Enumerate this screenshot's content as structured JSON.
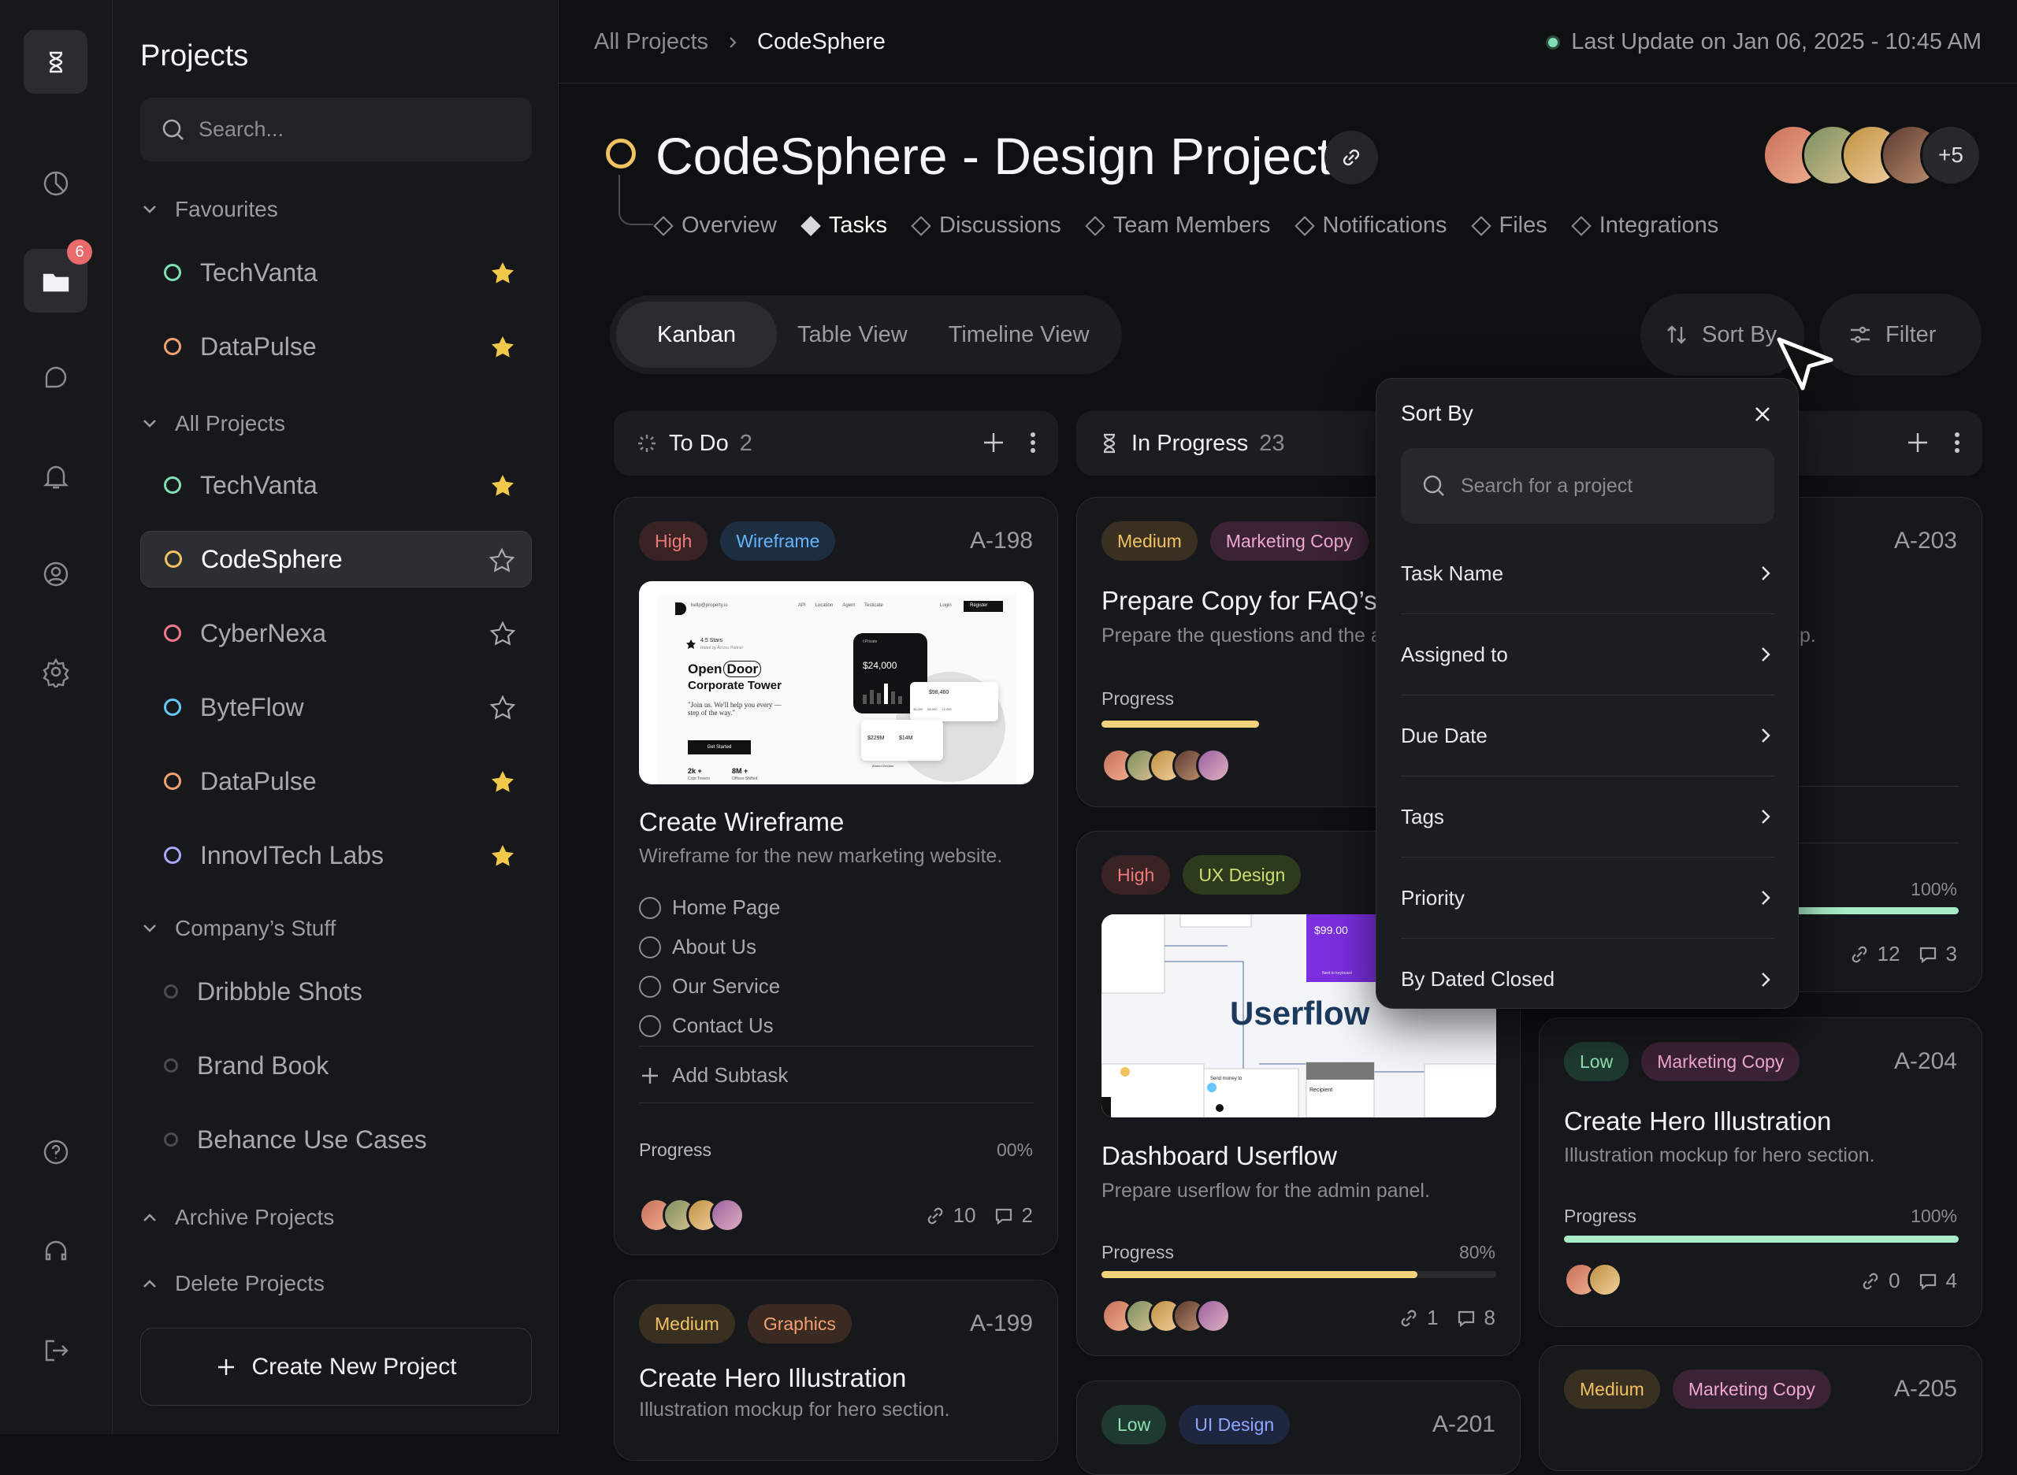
{
  "rail": {
    "badge": "6"
  },
  "sidebar": {
    "title": "Projects",
    "search_placeholder": "Search...",
    "favourites_label": "Favourites",
    "favourites": [
      {
        "name": "TechVanta",
        "color": "#7fe0b4",
        "starred": true
      },
      {
        "name": "DataPulse",
        "color": "#f2a070",
        "starred": true
      }
    ],
    "all_label": "All Projects",
    "all": [
      {
        "name": "TechVanta",
        "color": "#7fe0b4",
        "starred": true
      },
      {
        "name": "CodeSphere",
        "color": "#f2c161",
        "starred": false
      },
      {
        "name": "CyberNexa",
        "color": "#f07a8a",
        "starred": false
      },
      {
        "name": "ByteFlow",
        "color": "#66c8ff",
        "starred": false
      },
      {
        "name": "DataPulse",
        "color": "#f2a070",
        "starred": true
      },
      {
        "name": "InnovITech Labs",
        "color": "#a8a8ff",
        "starred": true
      }
    ],
    "company_label": "Company’s Stuff",
    "company": [
      "Dribbble Shots",
      "Brand Book",
      "Behance Use Cases"
    ],
    "archive_label": "Archive Projects",
    "delete_label": "Delete Projects",
    "create_label": "Create New Project"
  },
  "header": {
    "crumb_root": "All Projects",
    "crumb_current": "CodeSphere",
    "last_update": "Last Update on Jan 06, 2025 - 10:45 AM",
    "title": "CodeSphere - Design Project",
    "tabs": [
      "Overview",
      "Tasks",
      "Discussions",
      "Team Members",
      "Notifications",
      "Files",
      "Integrations"
    ],
    "more_members": "+5"
  },
  "views": [
    "Kanban",
    "Table View",
    "Timeline View"
  ],
  "sort_label": "Sort By",
  "filter_label": "Filter",
  "columns": {
    "todo": {
      "title": "To Do",
      "count": "2"
    },
    "progress": {
      "title": "In Progress",
      "count": "23"
    }
  },
  "cards": {
    "c198": {
      "tags": [
        "High",
        "Wireframe"
      ],
      "id": "A-198",
      "title": "Create Wireframe",
      "desc": "Wireframe for the new marketing website.",
      "subtasks": [
        "Home Page",
        "About Us",
        "Our Service",
        "Contact Us"
      ],
      "add_subtask": "Add Subtask",
      "progress_label": "Progress",
      "progress_text": "00%",
      "progress": 0,
      "links": "10",
      "comments": "2",
      "thumb": {
        "logo_text": "hellp@property.io",
        "menu": [
          "API",
          "Location",
          "Agent",
          "Testicate"
        ],
        "login": "Login",
        "register": "Register",
        "stars": "4.5 Stars",
        "stars_sub": "Rated by Across Partner",
        "headline_1": "Open",
        "headline_door": "Door",
        "headline_2": "Corporate Tower",
        "quote": "\"Join us. We'll help you every — step of the way.\"",
        "cta": "Get Started",
        "stat_1": "2k +",
        "stat_1_label": "Copr Towers",
        "stat_2": "8M +",
        "stat_2_label": "Offices Shifted",
        "app_name": "t.Private",
        "balance": "$24,000",
        "amount_1": "$98,460",
        "amount_2": "$229M",
        "amount_3": "$14M",
        "nums": [
          "36,000",
          "86,000",
          "12,000"
        ],
        "profile": "Ahmed Zeidam"
      }
    },
    "c199": {
      "tags": [
        "Medium",
        "Graphics"
      ],
      "id": "A-199",
      "title": "Create Hero Illustration",
      "desc": "Illustration mockup for hero section."
    },
    "faq": {
      "tags": [
        "Medium",
        "Marketing Copy"
      ],
      "title": "Prepare Copy for FAQ’s",
      "desc": "Prepare the questions and the ar",
      "progress_label": "Progress",
      "progress": 0.4
    },
    "flow": {
      "tags": [
        "High",
        "UX Design"
      ],
      "title": "Dashboard Userflow",
      "desc": "Prepare userflow for the admin panel.",
      "progress_label": "Progress",
      "progress_text": "80%",
      "progress": 0.8,
      "links": "1",
      "comments": "8",
      "thumb_label": "Userflow",
      "price": "$99.00",
      "recipient": "Recipient",
      "send_money": "Send money to",
      "next": "Next to keyboard"
    },
    "c201": {
      "tags": [
        "Low",
        "UI Design"
      ],
      "id": "A-201"
    },
    "c203": {
      "id": "A-203",
      "desc_tail": "p.",
      "progress_text": "100%",
      "progress": 1,
      "links": "12",
      "comments": "3"
    },
    "c204": {
      "tags": [
        "Low",
        "Marketing Copy"
      ],
      "id": "A-204",
      "title": "Create Hero Illustration",
      "desc": "Illustration mockup for hero section.",
      "progress_label": "Progress",
      "progress_text": "100%",
      "progress": 1,
      "links": "0",
      "comments": "4"
    },
    "c205": {
      "tags": [
        "Medium",
        "Marketing Copy"
      ],
      "id": "A-205"
    }
  },
  "sort_menu": {
    "title": "Sort By",
    "search_placeholder": "Search for a project",
    "items": [
      "Task Name",
      "Assigned to",
      "Due Date",
      "Tags",
      "Priority",
      "By Dated Closed"
    ]
  },
  "colors": {
    "accent_yellow": "#f2c161",
    "accent_green": "#a8ecc8",
    "bg": "#0f1012"
  }
}
